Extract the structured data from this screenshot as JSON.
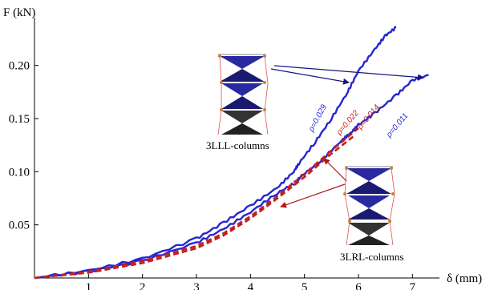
{
  "chart_data": {
    "type": "line",
    "title": "",
    "xlabel": "δ (mm)",
    "ylabel": "F (kN)",
    "xlim": [
      0,
      7.5
    ],
    "ylim": [
      0,
      0.245
    ],
    "x_ticks": [
      1,
      2,
      3,
      4,
      5,
      6,
      7
    ],
    "y_ticks": [
      0.05,
      0.1,
      0.15,
      0.2
    ],
    "y_tick_labels": [
      "0.05",
      "0.10",
      "0.15",
      "0.20"
    ],
    "grid": false,
    "legend": "none",
    "series": [
      {
        "color": "#2626d0",
        "style": "solid",
        "x": [
          0,
          1,
          2,
          3,
          3.5,
          4,
          4.5,
          4.8,
          4.9,
          5.2,
          5.5,
          5.8,
          6.0,
          6.3,
          6.5,
          6.7
        ],
        "y": [
          0,
          0.007,
          0.018,
          0.037,
          0.052,
          0.068,
          0.085,
          0.1,
          0.108,
          0.128,
          0.15,
          0.175,
          0.195,
          0.215,
          0.228,
          0.236
        ]
      },
      {
        "color": "#2626d0",
        "style": "solid",
        "x": [
          0,
          1,
          2,
          3,
          3.5,
          4,
          4.5,
          4.85,
          4.9,
          5.3,
          5.7,
          5.85,
          6.0,
          6.3,
          6.7,
          7.0,
          7.3
        ],
        "y": [
          0,
          0.006,
          0.016,
          0.033,
          0.046,
          0.062,
          0.08,
          0.09,
          0.094,
          0.11,
          0.13,
          0.136,
          0.144,
          0.155,
          0.172,
          0.186,
          0.191
        ]
      },
      {
        "color": "#c02020",
        "style": "dashed",
        "x": [
          0,
          1,
          2,
          3,
          3.5,
          4,
          4.5,
          5,
          5.5,
          6
        ],
        "y": [
          0,
          0.006,
          0.016,
          0.03,
          0.042,
          0.058,
          0.077,
          0.098,
          0.12,
          0.141
        ]
      },
      {
        "color": "#c02020",
        "style": "dashed",
        "x": [
          0,
          1,
          2,
          3,
          3.5,
          4,
          4.5,
          5,
          5.5,
          5.9
        ],
        "y": [
          0,
          0.005,
          0.014,
          0.028,
          0.04,
          0.056,
          0.075,
          0.095,
          0.117,
          0.133
        ]
      }
    ],
    "annotations": {
      "p_labels": [
        {
          "text": "ρ=0.029",
          "color": "#2626d0"
        },
        {
          "text": "ρ=0.022",
          "color": "#c02020"
        },
        {
          "text": "ρ=0.014",
          "color": "#c02020"
        },
        {
          "text": "ρ=0.011",
          "color": "#2626d0"
        }
      ],
      "captions": [
        "3LLL-columns",
        "3LRL-columns"
      ]
    }
  }
}
